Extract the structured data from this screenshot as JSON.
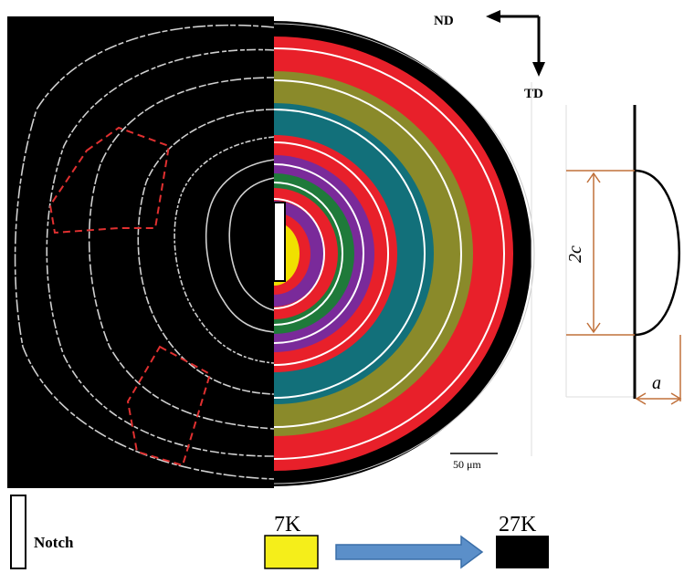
{
  "orientation": {
    "nd": "ND",
    "td": "TD"
  },
  "crack_diagram": {
    "length_label": "2c",
    "depth_label": "a"
  },
  "scale_bar": "50 μm",
  "legend": {
    "notch": "Notch",
    "low": "7K",
    "high": "27K"
  }
}
